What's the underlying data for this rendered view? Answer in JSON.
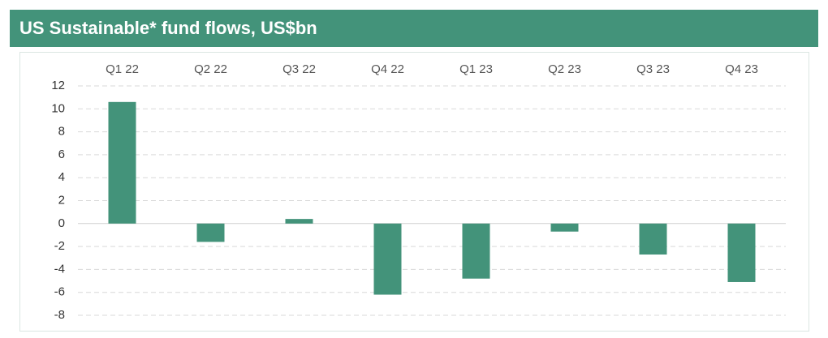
{
  "chart_data": {
    "type": "bar",
    "title": "US Sustainable* fund flows, US$bn",
    "categories": [
      "Q1 22",
      "Q2 22",
      "Q3 22",
      "Q4 22",
      "Q1 23",
      "Q2 23",
      "Q3 23",
      "Q4 23"
    ],
    "values": [
      10.6,
      -1.6,
      0.4,
      -6.2,
      -4.8,
      -0.7,
      -2.7,
      -5.1
    ],
    "color": "#43937a",
    "ylim": [
      -8,
      12
    ],
    "yticks": [
      12,
      10,
      8,
      6,
      4,
      2,
      0,
      -2,
      -4,
      -6,
      -8
    ],
    "grid": true
  }
}
